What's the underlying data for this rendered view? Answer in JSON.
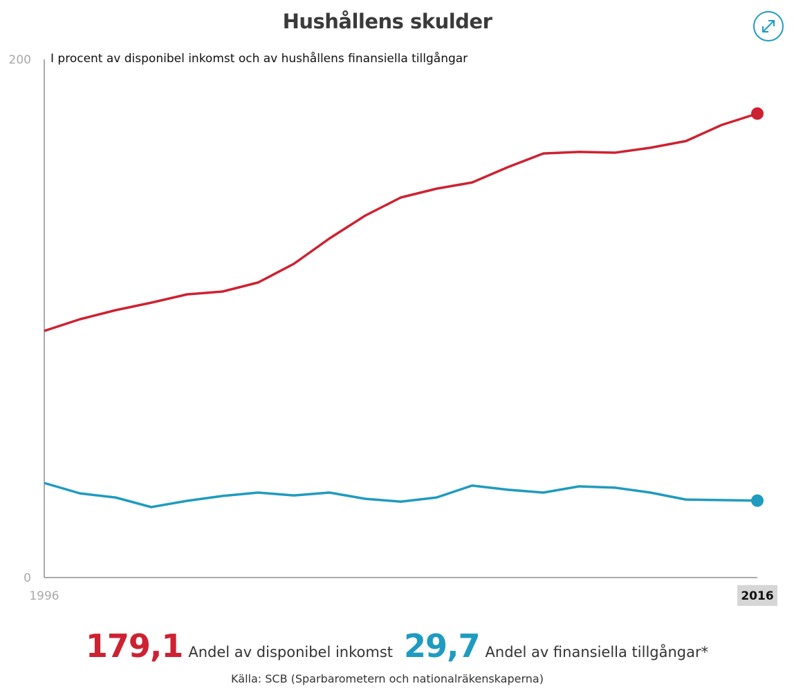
{
  "header": {
    "title": "Hushållens skulder",
    "expand_icon": "expand-arrows-icon"
  },
  "chart_data": {
    "type": "line",
    "title": "Hushållens skulder",
    "subtitle": "I procent av disponibel inkomst och av hushållens finansiella tillgångar",
    "xlabel": "",
    "ylabel": "",
    "x": [
      1996,
      1997,
      1998,
      1999,
      2000,
      2001,
      2002,
      2003,
      2004,
      2005,
      2006,
      2007,
      2008,
      2009,
      2010,
      2011,
      2012,
      2013,
      2014,
      2015,
      2016
    ],
    "xlim": [
      1996,
      2016
    ],
    "ylim": [
      0,
      200
    ],
    "y_ticks": [
      "0",
      "200"
    ],
    "x_ticks": [
      "1996",
      "2016"
    ],
    "highlighted_x": "2016",
    "grid": false,
    "series": [
      {
        "name": "Andel av disponibel inkomst",
        "color": "#cd2231",
        "values": [
          95.2,
          99.7,
          103.2,
          106.1,
          109.3,
          110.4,
          113.9,
          121.1,
          130.9,
          139.7,
          146.7,
          150.1,
          152.5,
          158.4,
          163.7,
          164.3,
          164.0,
          165.9,
          168.5,
          174.7,
          179.1
        ]
      },
      {
        "name": "Andel av finansiella tillgångar*",
        "color": "#1f9bbf",
        "values": [
          36.5,
          32.5,
          30.9,
          27.2,
          29.6,
          31.5,
          32.8,
          31.7,
          32.8,
          30.4,
          29.3,
          30.9,
          35.5,
          33.9,
          32.8,
          35.2,
          34.7,
          32.8,
          30.1,
          29.9,
          29.7
        ]
      }
    ]
  },
  "summary": {
    "value1": "179,1",
    "label1": "Andel av disponibel inkomst",
    "value2": "29,7",
    "label2": "Andel av finansiella tillgångar*"
  },
  "source": "Källa: SCB (Sparbarometern och nationalräkenskaperna)"
}
